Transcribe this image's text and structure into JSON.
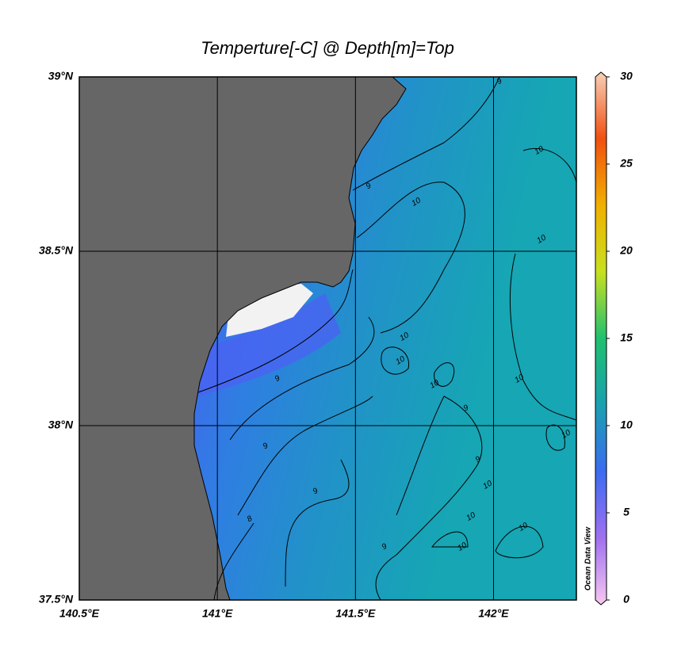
{
  "map": {
    "title": "Temperture[-C] @ Depth[m]=Top",
    "lonlim": [
      140.5,
      142.3
    ],
    "latlim": [
      37.5,
      39
    ],
    "lonticks": [
      {
        "value": 140.5,
        "label": "140.5°E"
      },
      {
        "value": 141,
        "label": "141°E"
      },
      {
        "value": 141.5,
        "label": "141.5°E"
      },
      {
        "value": 142,
        "label": "142°E"
      }
    ],
    "latticks": [
      {
        "value": 37.5,
        "label": "37.5°N"
      },
      {
        "value": 38,
        "label": "38°N"
      },
      {
        "value": 38.5,
        "label": "38.5°N"
      },
      {
        "value": 39,
        "label": "39°N"
      }
    ],
    "grid": true,
    "colorbar": {
      "lim": [
        0,
        30
      ],
      "ticks": [
        0,
        5,
        10,
        15,
        20,
        25,
        30
      ],
      "colors": [
        "#f7c8f0",
        "#a070f0",
        "#3b6cf0",
        "#1aa0b0",
        "#20c070",
        "#c8e020",
        "#f0b000",
        "#f05010",
        "#f8d0b8"
      ]
    },
    "watermark": "Ocean Data View",
    "contour_labels": [
      9,
      10,
      9,
      10,
      10,
      10,
      10,
      9,
      10,
      10,
      9,
      10,
      9,
      9,
      9,
      10,
      10,
      10,
      8,
      9,
      10
    ]
  }
}
